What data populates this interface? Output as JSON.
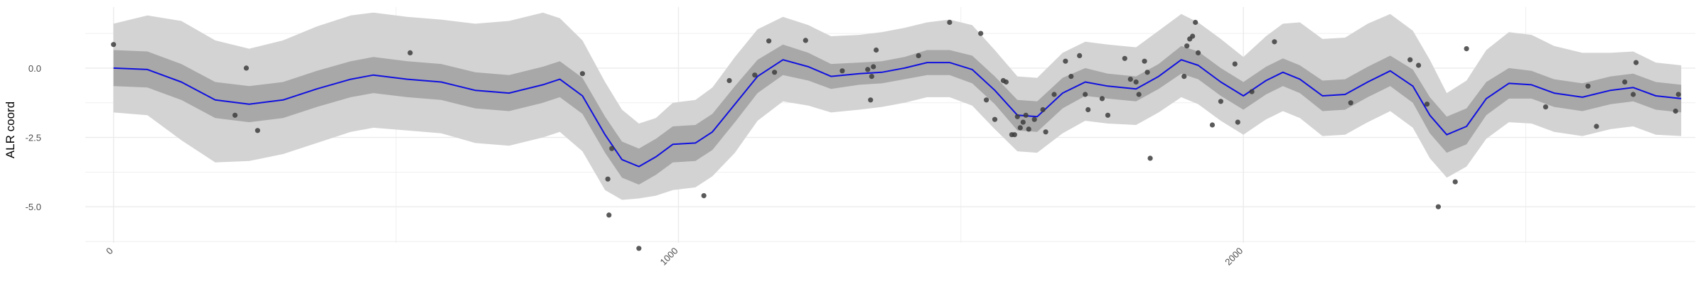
{
  "chart_data": {
    "type": "scatter",
    "title": "",
    "xlabel": "",
    "ylabel": "ALR coord",
    "xlim": [
      -50,
      2800
    ],
    "ylim": [
      -6.3,
      2.2
    ],
    "x_ticks": [
      0,
      1000,
      2000
    ],
    "x_tick_labels": [
      "0",
      "1000",
      "2000"
    ],
    "y_ticks": [
      0,
      -2.5,
      -5
    ],
    "y_tick_labels": [
      "0.0",
      "-2.5",
      "-5.0"
    ],
    "grid": true,
    "legend": "none",
    "colors": {
      "points": "#3d3d3d",
      "mean_line": "#1010e0",
      "inner_band": "#a8a8a8",
      "outer_band": "#d3d3d3",
      "grid": "#ebebeb"
    },
    "points": [
      [
        0,
        0.85
      ],
      [
        215,
        -1.7
      ],
      [
        235,
        0.0
      ],
      [
        255,
        -2.25
      ],
      [
        525,
        0.55
      ],
      [
        830,
        -0.2
      ],
      [
        875,
        -4.0
      ],
      [
        877,
        -5.3
      ],
      [
        882,
        -2.9
      ],
      [
        930,
        -6.5
      ],
      [
        1045,
        -4.6
      ],
      [
        1090,
        -0.45
      ],
      [
        1135,
        -0.25
      ],
      [
        1160,
        0.98
      ],
      [
        1170,
        -0.15
      ],
      [
        1225,
        1.0
      ],
      [
        1290,
        -0.1
      ],
      [
        1335,
        -0.05
      ],
      [
        1340,
        -1.15
      ],
      [
        1342,
        -0.3
      ],
      [
        1345,
        0.05
      ],
      [
        1350,
        0.65
      ],
      [
        1425,
        0.45
      ],
      [
        1480,
        1.65
      ],
      [
        1535,
        1.25
      ],
      [
        1545,
        -1.15
      ],
      [
        1560,
        -1.85
      ],
      [
        1575,
        -0.45
      ],
      [
        1580,
        -0.5
      ],
      [
        1590,
        -2.4
      ],
      [
        1595,
        -2.4
      ],
      [
        1600,
        -1.75
      ],
      [
        1605,
        -2.15
      ],
      [
        1610,
        -1.95
      ],
      [
        1615,
        -1.7
      ],
      [
        1620,
        -2.2
      ],
      [
        1630,
        -1.85
      ],
      [
        1645,
        -1.5
      ],
      [
        1650,
        -2.3
      ],
      [
        1665,
        -0.95
      ],
      [
        1685,
        0.25
      ],
      [
        1695,
        -0.3
      ],
      [
        1710,
        0.45
      ],
      [
        1720,
        -0.95
      ],
      [
        1725,
        -1.5
      ],
      [
        1750,
        -1.1
      ],
      [
        1760,
        -1.7
      ],
      [
        1790,
        0.35
      ],
      [
        1800,
        -0.4
      ],
      [
        1810,
        -0.5
      ],
      [
        1815,
        -0.95
      ],
      [
        1825,
        0.25
      ],
      [
        1830,
        -0.15
      ],
      [
        1835,
        -3.25
      ],
      [
        1895,
        -0.3
      ],
      [
        1900,
        0.8
      ],
      [
        1905,
        1.05
      ],
      [
        1910,
        1.15
      ],
      [
        1915,
        1.65
      ],
      [
        1920,
        0.55
      ],
      [
        1945,
        -2.05
      ],
      [
        1960,
        -1.2
      ],
      [
        1985,
        0.15
      ],
      [
        1990,
        -1.95
      ],
      [
        2015,
        -0.85
      ],
      [
        2055,
        0.95
      ],
      [
        2190,
        -1.25
      ],
      [
        2295,
        0.3
      ],
      [
        2310,
        0.1
      ],
      [
        2325,
        -1.3
      ],
      [
        2345,
        -5.0
      ],
      [
        2375,
        -4.1
      ],
      [
        2395,
        0.7
      ],
      [
        2535,
        -1.4
      ],
      [
        2610,
        -0.65
      ],
      [
        2625,
        -2.1
      ],
      [
        2675,
        -0.5
      ],
      [
        2690,
        -0.95
      ],
      [
        2695,
        0.2
      ],
      [
        2765,
        -1.55
      ],
      [
        2770,
        -0.95
      ]
    ],
    "mean_curve": [
      [
        0,
        0.0
      ],
      [
        60,
        -0.05
      ],
      [
        120,
        -0.5
      ],
      [
        180,
        -1.15
      ],
      [
        240,
        -1.3
      ],
      [
        300,
        -1.15
      ],
      [
        360,
        -0.75
      ],
      [
        420,
        -0.4
      ],
      [
        460,
        -0.25
      ],
      [
        520,
        -0.4
      ],
      [
        580,
        -0.5
      ],
      [
        640,
        -0.8
      ],
      [
        700,
        -0.9
      ],
      [
        760,
        -0.6
      ],
      [
        790,
        -0.4
      ],
      [
        830,
        -1.0
      ],
      [
        870,
        -2.4
      ],
      [
        900,
        -3.3
      ],
      [
        930,
        -3.55
      ],
      [
        960,
        -3.2
      ],
      [
        990,
        -2.75
      ],
      [
        1030,
        -2.7
      ],
      [
        1060,
        -2.3
      ],
      [
        1100,
        -1.3
      ],
      [
        1140,
        -0.3
      ],
      [
        1185,
        0.3
      ],
      [
        1230,
        0.05
      ],
      [
        1270,
        -0.3
      ],
      [
        1320,
        -0.2
      ],
      [
        1360,
        -0.15
      ],
      [
        1400,
        0.0
      ],
      [
        1440,
        0.2
      ],
      [
        1480,
        0.2
      ],
      [
        1520,
        -0.05
      ],
      [
        1560,
        -0.8
      ],
      [
        1600,
        -1.7
      ],
      [
        1635,
        -1.75
      ],
      [
        1680,
        -0.9
      ],
      [
        1720,
        -0.5
      ],
      [
        1760,
        -0.65
      ],
      [
        1810,
        -0.75
      ],
      [
        1850,
        -0.3
      ],
      [
        1890,
        0.3
      ],
      [
        1920,
        0.1
      ],
      [
        1960,
        -0.5
      ],
      [
        2000,
        -1.0
      ],
      [
        2040,
        -0.45
      ],
      [
        2070,
        -0.15
      ],
      [
        2100,
        -0.4
      ],
      [
        2140,
        -1.0
      ],
      [
        2180,
        -0.95
      ],
      [
        2220,
        -0.5
      ],
      [
        2260,
        -0.1
      ],
      [
        2300,
        -0.65
      ],
      [
        2330,
        -1.7
      ],
      [
        2360,
        -2.4
      ],
      [
        2395,
        -2.1
      ],
      [
        2430,
        -1.1
      ],
      [
        2470,
        -0.55
      ],
      [
        2510,
        -0.6
      ],
      [
        2550,
        -0.9
      ],
      [
        2600,
        -1.05
      ],
      [
        2650,
        -0.8
      ],
      [
        2690,
        -0.7
      ],
      [
        2730,
        -1.0
      ],
      [
        2775,
        -1.1
      ]
    ],
    "inner_band": [
      [
        0,
        -0.65,
        0.65
      ],
      [
        60,
        -0.7,
        0.6
      ],
      [
        120,
        -1.15,
        0.15
      ],
      [
        180,
        -1.8,
        -0.5
      ],
      [
        240,
        -1.95,
        -0.65
      ],
      [
        300,
        -1.8,
        -0.5
      ],
      [
        360,
        -1.4,
        -0.1
      ],
      [
        420,
        -1.05,
        0.25
      ],
      [
        460,
        -0.9,
        0.4
      ],
      [
        520,
        -1.05,
        0.25
      ],
      [
        580,
        -1.15,
        0.15
      ],
      [
        640,
        -1.45,
        -0.15
      ],
      [
        700,
        -1.55,
        -0.25
      ],
      [
        760,
        -1.25,
        0.05
      ],
      [
        790,
        -1.05,
        0.25
      ],
      [
        830,
        -1.65,
        -0.35
      ],
      [
        870,
        -3.05,
        -1.75
      ],
      [
        900,
        -3.95,
        -2.65
      ],
      [
        930,
        -4.2,
        -2.9
      ],
      [
        960,
        -3.85,
        -2.55
      ],
      [
        990,
        -3.4,
        -2.1
      ],
      [
        1030,
        -3.35,
        -2.05
      ],
      [
        1060,
        -2.95,
        -1.65
      ],
      [
        1100,
        -1.95,
        -0.65
      ],
      [
        1140,
        -0.9,
        0.3
      ],
      [
        1185,
        -0.25,
        0.85
      ],
      [
        1230,
        -0.45,
        0.55
      ],
      [
        1270,
        -0.75,
        0.15
      ],
      [
        1320,
        -0.6,
        0.2
      ],
      [
        1360,
        -0.55,
        0.25
      ],
      [
        1400,
        -0.4,
        0.4
      ],
      [
        1440,
        -0.25,
        0.65
      ],
      [
        1480,
        -0.25,
        0.65
      ],
      [
        1520,
        -0.55,
        0.45
      ],
      [
        1560,
        -1.3,
        -0.3
      ],
      [
        1600,
        -2.25,
        -1.15
      ],
      [
        1635,
        -2.3,
        -1.2
      ],
      [
        1680,
        -1.45,
        -0.35
      ],
      [
        1720,
        -1.0,
        0.0
      ],
      [
        1760,
        -1.1,
        -0.2
      ],
      [
        1810,
        -1.2,
        -0.3
      ],
      [
        1850,
        -0.75,
        0.15
      ],
      [
        1890,
        -0.2,
        0.8
      ],
      [
        1920,
        -0.4,
        0.6
      ],
      [
        1960,
        -1.0,
        0.0
      ],
      [
        2000,
        -1.5,
        -0.5
      ],
      [
        2040,
        -0.95,
        0.05
      ],
      [
        2070,
        -0.65,
        0.35
      ],
      [
        2100,
        -0.9,
        0.1
      ],
      [
        2140,
        -1.55,
        -0.45
      ],
      [
        2180,
        -1.5,
        -0.4
      ],
      [
        2220,
        -1.05,
        0.05
      ],
      [
        2260,
        -0.65,
        0.45
      ],
      [
        2300,
        -1.25,
        -0.05
      ],
      [
        2330,
        -2.35,
        -1.05
      ],
      [
        2360,
        -3.05,
        -1.75
      ],
      [
        2395,
        -2.75,
        -1.45
      ],
      [
        2430,
        -1.7,
        -0.5
      ],
      [
        2470,
        -1.1,
        0.0
      ],
      [
        2510,
        -1.1,
        -0.1
      ],
      [
        2550,
        -1.4,
        -0.4
      ],
      [
        2600,
        -1.55,
        -0.55
      ],
      [
        2650,
        -1.3,
        -0.3
      ],
      [
        2690,
        -1.2,
        -0.2
      ],
      [
        2730,
        -1.5,
        -0.5
      ],
      [
        2775,
        -1.6,
        -0.6
      ]
    ],
    "outer_band": [
      [
        0,
        -1.6,
        1.6
      ],
      [
        60,
        -1.7,
        1.9
      ],
      [
        120,
        -2.6,
        1.7
      ],
      [
        180,
        -3.4,
        1.0
      ],
      [
        240,
        -3.35,
        0.7
      ],
      [
        300,
        -3.1,
        1.0
      ],
      [
        360,
        -2.7,
        1.5
      ],
      [
        420,
        -2.3,
        1.9
      ],
      [
        460,
        -2.15,
        2.0
      ],
      [
        520,
        -2.25,
        1.85
      ],
      [
        580,
        -2.35,
        1.75
      ],
      [
        640,
        -2.7,
        1.6
      ],
      [
        700,
        -2.8,
        1.7
      ],
      [
        760,
        -2.5,
        2.0
      ],
      [
        790,
        -2.3,
        1.8
      ],
      [
        830,
        -3.0,
        1.0
      ],
      [
        870,
        -4.4,
        -0.5
      ],
      [
        900,
        -4.75,
        -1.5
      ],
      [
        930,
        -4.7,
        -2.0
      ],
      [
        960,
        -4.6,
        -1.8
      ],
      [
        990,
        -4.4,
        -1.25
      ],
      [
        1030,
        -4.3,
        -1.15
      ],
      [
        1060,
        -3.9,
        -0.7
      ],
      [
        1100,
        -3.05,
        0.4
      ],
      [
        1140,
        -1.9,
        1.4
      ],
      [
        1185,
        -1.2,
        1.85
      ],
      [
        1230,
        -1.35,
        1.55
      ],
      [
        1270,
        -1.6,
        1.15
      ],
      [
        1320,
        -1.5,
        1.2
      ],
      [
        1360,
        -1.4,
        1.3
      ],
      [
        1400,
        -1.25,
        1.45
      ],
      [
        1440,
        -1.05,
        1.65
      ],
      [
        1480,
        -1.05,
        1.75
      ],
      [
        1520,
        -1.35,
        1.55
      ],
      [
        1560,
        -2.2,
        0.65
      ],
      [
        1600,
        -3.0,
        -0.3
      ],
      [
        1635,
        -3.05,
        -0.35
      ],
      [
        1680,
        -2.35,
        0.55
      ],
      [
        1720,
        -1.9,
        0.95
      ],
      [
        1760,
        -2.0,
        0.85
      ],
      [
        1810,
        -2.05,
        0.75
      ],
      [
        1850,
        -1.6,
        1.35
      ],
      [
        1890,
        -1.05,
        1.95
      ],
      [
        1920,
        -1.3,
        1.65
      ],
      [
        1960,
        -1.9,
        1.05
      ],
      [
        2000,
        -2.4,
        0.4
      ],
      [
        2040,
        -1.85,
        1.15
      ],
      [
        2070,
        -1.55,
        1.6
      ],
      [
        2100,
        -1.8,
        1.65
      ],
      [
        2140,
        -2.45,
        1.05
      ],
      [
        2180,
        -2.4,
        1.1
      ],
      [
        2220,
        -1.95,
        1.6
      ],
      [
        2260,
        -1.55,
        1.95
      ],
      [
        2300,
        -2.15,
        1.35
      ],
      [
        2330,
        -3.25,
        0.3
      ],
      [
        2360,
        -3.95,
        -0.9
      ],
      [
        2395,
        -3.55,
        -0.45
      ],
      [
        2430,
        -2.55,
        0.65
      ],
      [
        2470,
        -1.95,
        1.3
      ],
      [
        2510,
        -2.0,
        1.2
      ],
      [
        2550,
        -2.3,
        0.8
      ],
      [
        2600,
        -2.45,
        0.55
      ],
      [
        2650,
        -2.2,
        0.55
      ],
      [
        2690,
        -2.1,
        0.6
      ],
      [
        2730,
        -2.4,
        0.2
      ],
      [
        2775,
        -2.45,
        0.1
      ]
    ]
  }
}
